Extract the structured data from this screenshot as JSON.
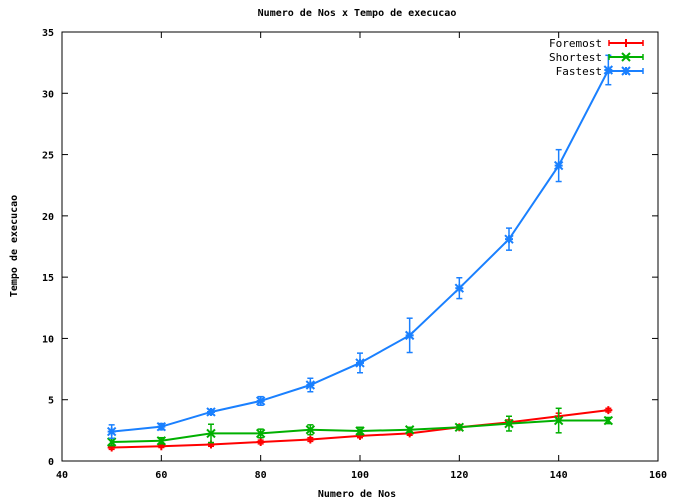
{
  "chart_data": {
    "type": "line",
    "title": "Numero de Nos x Tempo de execucao",
    "xlabel": "Numero de Nos",
    "ylabel": "Tempo de execucao",
    "xlim": [
      40,
      160
    ],
    "ylim": [
      0,
      35
    ],
    "xticks": [
      40,
      60,
      80,
      100,
      120,
      140,
      160
    ],
    "yticks": [
      0,
      5,
      10,
      15,
      20,
      25,
      30,
      35
    ],
    "legend_position": "top-right",
    "grid": false,
    "x": [
      50,
      60,
      70,
      80,
      90,
      100,
      110,
      120,
      130,
      140,
      150
    ],
    "series": [
      {
        "name": "Foremost",
        "color": "#ff0000",
        "marker": "plus",
        "values": [
          1.1,
          1.2,
          1.35,
          1.55,
          1.75,
          2.05,
          2.25,
          2.75,
          3.15,
          3.65,
          4.15
        ],
        "errors": [
          0.15,
          0.1,
          0.15,
          0.15,
          0.15,
          0.15,
          0.15,
          0.1,
          0.2,
          0.25,
          0.15
        ]
      },
      {
        "name": "Shortest",
        "color": "#00b000",
        "marker": "cross",
        "values": [
          1.55,
          1.65,
          2.25,
          2.25,
          2.55,
          2.45,
          2.55,
          2.75,
          3.05,
          3.3,
          3.3
        ],
        "errors": [
          0.3,
          0.25,
          0.75,
          0.35,
          0.4,
          0.3,
          0.2,
          0.2,
          0.6,
          1.0,
          0.25
        ]
      },
      {
        "name": "Fastest",
        "color": "#1a80ff",
        "marker": "star",
        "values": [
          2.4,
          2.8,
          4.0,
          4.9,
          6.2,
          8.0,
          10.25,
          14.1,
          18.1,
          24.1,
          31.9
        ],
        "errors": [
          0.55,
          0.25,
          0.2,
          0.35,
          0.55,
          0.8,
          1.4,
          0.85,
          0.9,
          1.3,
          1.2
        ]
      }
    ]
  }
}
